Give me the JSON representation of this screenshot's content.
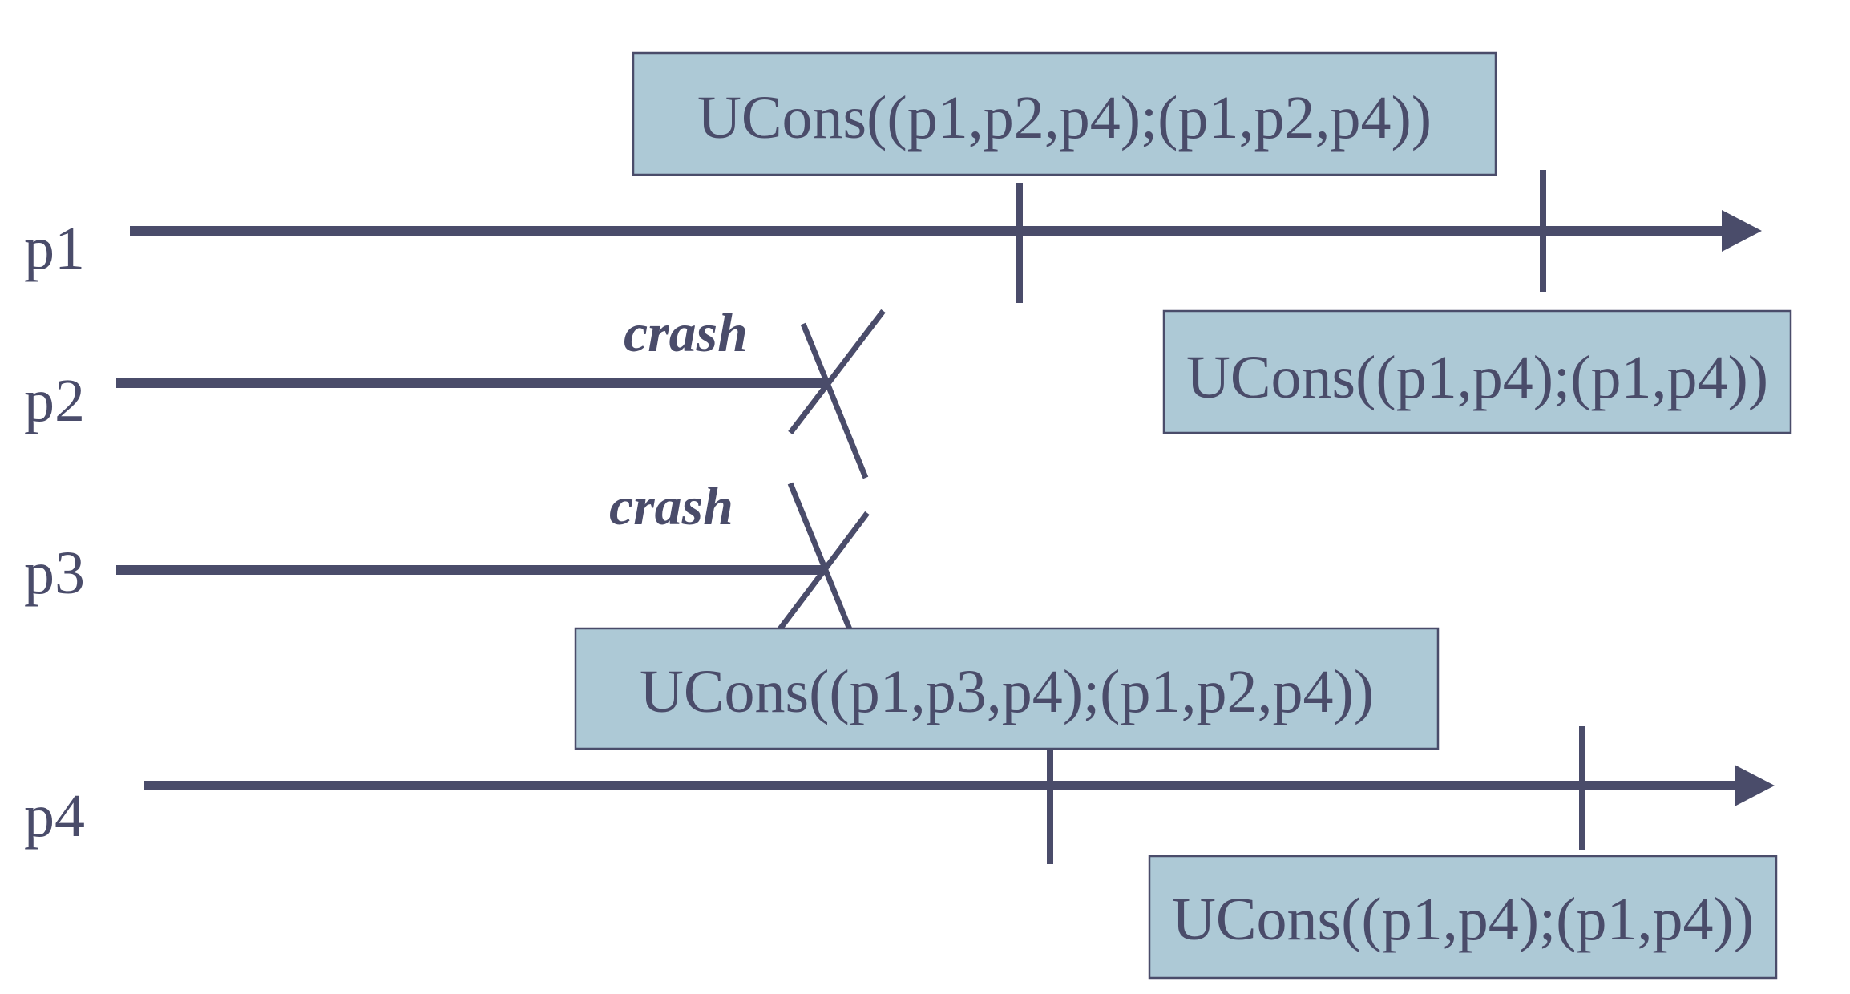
{
  "colors": {
    "line": "#4a4c6a",
    "box_fill": "#adc9d6",
    "text": "#4a4c6a",
    "background": "#ffffff"
  },
  "processes": {
    "p1": "p1",
    "p2": "p2",
    "p3": "p3",
    "p4": "p4"
  },
  "crash_labels": {
    "p2": "crash",
    "p3": "crash"
  },
  "ucons_boxes": {
    "p1_first": "UCons((p1,p2,p4);(p1,p2,p4))",
    "p1_second": "UCons((p1,p4);(p1,p4))",
    "p4_first": "UCons((p1,p3,p4);(p1,p2,p4))",
    "p4_second": "UCons((p1,p4);(p1,p4))"
  }
}
